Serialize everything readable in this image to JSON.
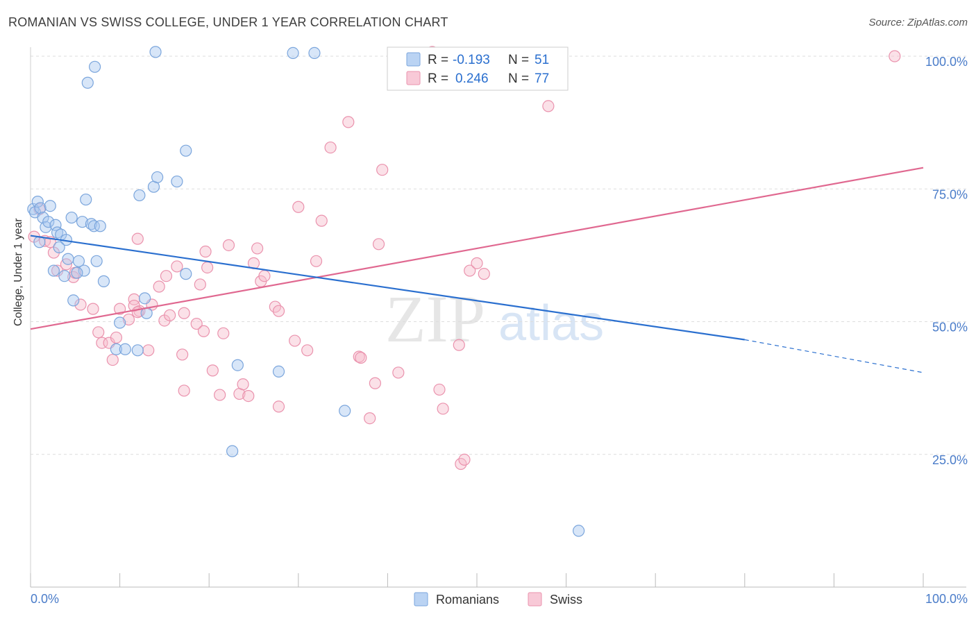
{
  "title": "ROMANIAN VS SWISS COLLEGE, UNDER 1 YEAR CORRELATION CHART",
  "source": "Source: ZipAtlas.com",
  "watermark": {
    "zip": "ZIP",
    "atlas": "atlas"
  },
  "colors": {
    "romanians_fill": "#a9c8f0",
    "romanians_stroke": "#7aa5dc",
    "romanians_line": "#2a6fcf",
    "swiss_fill": "#f6bccd",
    "swiss_stroke": "#ea92ad",
    "swiss_line": "#e06890",
    "axis_label": "#4a7cc9",
    "grid": "#dddddd"
  },
  "legend": {
    "rows": [
      {
        "series": "Romanians",
        "r_label": "R = ",
        "r_value": "-0.193",
        "n_label": "N = ",
        "n_value": "51"
      },
      {
        "series": "Swiss",
        "r_label": "R = ",
        "r_value": "0.246",
        "n_label": "N = ",
        "n_value": "77"
      }
    ]
  },
  "bottom_legend": [
    "Romanians",
    "Swiss"
  ],
  "chart_data": {
    "type": "scatter",
    "title": "ROMANIAN VS SWISS COLLEGE, UNDER 1 YEAR CORRELATION CHART",
    "xlabel": "",
    "ylabel": "College, Under 1 year",
    "xlim": [
      0,
      100
    ],
    "ylim": [
      0,
      100
    ],
    "x_tick_labels": [
      "0.0%",
      "100.0%"
    ],
    "y_ticks": [
      25,
      50,
      75,
      100
    ],
    "y_tick_labels": [
      "25.0%",
      "50.0%",
      "75.0%",
      "100.0%"
    ],
    "grid": true,
    "series": [
      {
        "name": "Romanians",
        "r": -0.193,
        "n": 51,
        "trend": {
          "x0": 0,
          "y0": 66.2,
          "x1": 80,
          "y1": 46.6,
          "dashed_to_x": 100,
          "dashed_to_y": 40.4
        },
        "points": [
          [
            0.3,
            71.2
          ],
          [
            0.5,
            70.6
          ],
          [
            0.8,
            72.6
          ],
          [
            1.1,
            71.4
          ],
          [
            1.4,
            69.6
          ],
          [
            1.7,
            67.8
          ],
          [
            2.0,
            68.8
          ],
          [
            2.2,
            71.8
          ],
          [
            2.8,
            68.2
          ],
          [
            3.0,
            66.8
          ],
          [
            3.4,
            66.4
          ],
          [
            4.0,
            65.4
          ],
          [
            4.6,
            69.6
          ],
          [
            5.8,
            68.8
          ],
          [
            6.2,
            73.0
          ],
          [
            6.8,
            68.4
          ],
          [
            7.1,
            68.0
          ],
          [
            7.8,
            68.0
          ],
          [
            2.6,
            59.6
          ],
          [
            4.2,
            61.8
          ],
          [
            5.4,
            61.4
          ],
          [
            6.0,
            59.6
          ],
          [
            7.4,
            61.4
          ],
          [
            8.2,
            57.6
          ],
          [
            4.8,
            54.0
          ],
          [
            5.2,
            59.2
          ],
          [
            3.8,
            58.6
          ],
          [
            10.0,
            49.8
          ],
          [
            13.0,
            51.6
          ],
          [
            12.0,
            44.6
          ],
          [
            9.6,
            44.8
          ],
          [
            10.6,
            44.8
          ],
          [
            17.4,
            59.0
          ],
          [
            13.8,
            75.4
          ],
          [
            12.2,
            73.8
          ],
          [
            16.4,
            76.4
          ],
          [
            17.4,
            82.2
          ],
          [
            14.2,
            77.2
          ],
          [
            7.2,
            98.0
          ],
          [
            14.0,
            100.8
          ],
          [
            6.4,
            95.0
          ],
          [
            29.4,
            100.6
          ],
          [
            31.8,
            100.6
          ],
          [
            23.2,
            41.8
          ],
          [
            27.8,
            40.6
          ],
          [
            35.2,
            33.2
          ],
          [
            22.6,
            25.6
          ],
          [
            61.4,
            10.6
          ],
          [
            3.2,
            64.0
          ],
          [
            12.8,
            54.4
          ],
          [
            1.0,
            65.0
          ]
        ]
      },
      {
        "name": "Swiss",
        "r": 0.246,
        "n": 77,
        "trend": {
          "x0": 0,
          "y0": 48.6,
          "x1": 100,
          "y1": 79.0
        },
        "points": [
          [
            0.4,
            66.0
          ],
          [
            1.0,
            71.2
          ],
          [
            1.6,
            65.2
          ],
          [
            2.2,
            65.0
          ],
          [
            2.6,
            63.0
          ],
          [
            3.0,
            59.6
          ],
          [
            4.0,
            60.8
          ],
          [
            4.8,
            58.4
          ],
          [
            5.0,
            59.2
          ],
          [
            5.6,
            53.2
          ],
          [
            7.0,
            52.4
          ],
          [
            7.6,
            48.0
          ],
          [
            8.0,
            46.0
          ],
          [
            8.8,
            46.0
          ],
          [
            9.2,
            42.8
          ],
          [
            9.6,
            47.0
          ],
          [
            10.0,
            52.4
          ],
          [
            11.0,
            50.4
          ],
          [
            12.0,
            65.6
          ],
          [
            12.2,
            52.0
          ],
          [
            11.6,
            54.2
          ],
          [
            11.6,
            53.0
          ],
          [
            12.0,
            51.8
          ],
          [
            13.2,
            44.6
          ],
          [
            13.6,
            53.2
          ],
          [
            14.4,
            56.6
          ],
          [
            15.0,
            50.2
          ],
          [
            15.2,
            58.6
          ],
          [
            15.6,
            51.2
          ],
          [
            16.4,
            60.4
          ],
          [
            17.0,
            43.8
          ],
          [
            17.2,
            51.6
          ],
          [
            17.2,
            37.0
          ],
          [
            18.6,
            49.6
          ],
          [
            19.0,
            57.0
          ],
          [
            19.4,
            48.2
          ],
          [
            19.8,
            60.2
          ],
          [
            19.6,
            63.2
          ],
          [
            20.4,
            40.8
          ],
          [
            21.2,
            36.2
          ],
          [
            21.6,
            47.8
          ],
          [
            22.2,
            64.4
          ],
          [
            23.4,
            36.4
          ],
          [
            23.8,
            38.2
          ],
          [
            24.4,
            36.0
          ],
          [
            25.0,
            61.0
          ],
          [
            25.4,
            63.8
          ],
          [
            25.8,
            57.6
          ],
          [
            26.2,
            58.6
          ],
          [
            27.4,
            52.8
          ],
          [
            27.8,
            52.0
          ],
          [
            27.8,
            34.0
          ],
          [
            29.6,
            46.4
          ],
          [
            30.0,
            71.6
          ],
          [
            31.0,
            44.6
          ],
          [
            32.0,
            61.4
          ],
          [
            32.6,
            69.0
          ],
          [
            33.6,
            82.8
          ],
          [
            35.6,
            87.6
          ],
          [
            36.8,
            43.4
          ],
          [
            37.0,
            43.2
          ],
          [
            38.0,
            31.8
          ],
          [
            38.6,
            38.4
          ],
          [
            39.0,
            64.6
          ],
          [
            39.4,
            78.6
          ],
          [
            41.2,
            40.4
          ],
          [
            45.8,
            37.2
          ],
          [
            46.2,
            33.6
          ],
          [
            48.0,
            45.6
          ],
          [
            49.2,
            59.6
          ],
          [
            50.0,
            61.0
          ],
          [
            50.8,
            59.0
          ],
          [
            48.2,
            23.2
          ],
          [
            48.6,
            24.0
          ],
          [
            96.8,
            100.0
          ],
          [
            45.0,
            100.8
          ],
          [
            58.0,
            90.6
          ]
        ]
      }
    ]
  }
}
